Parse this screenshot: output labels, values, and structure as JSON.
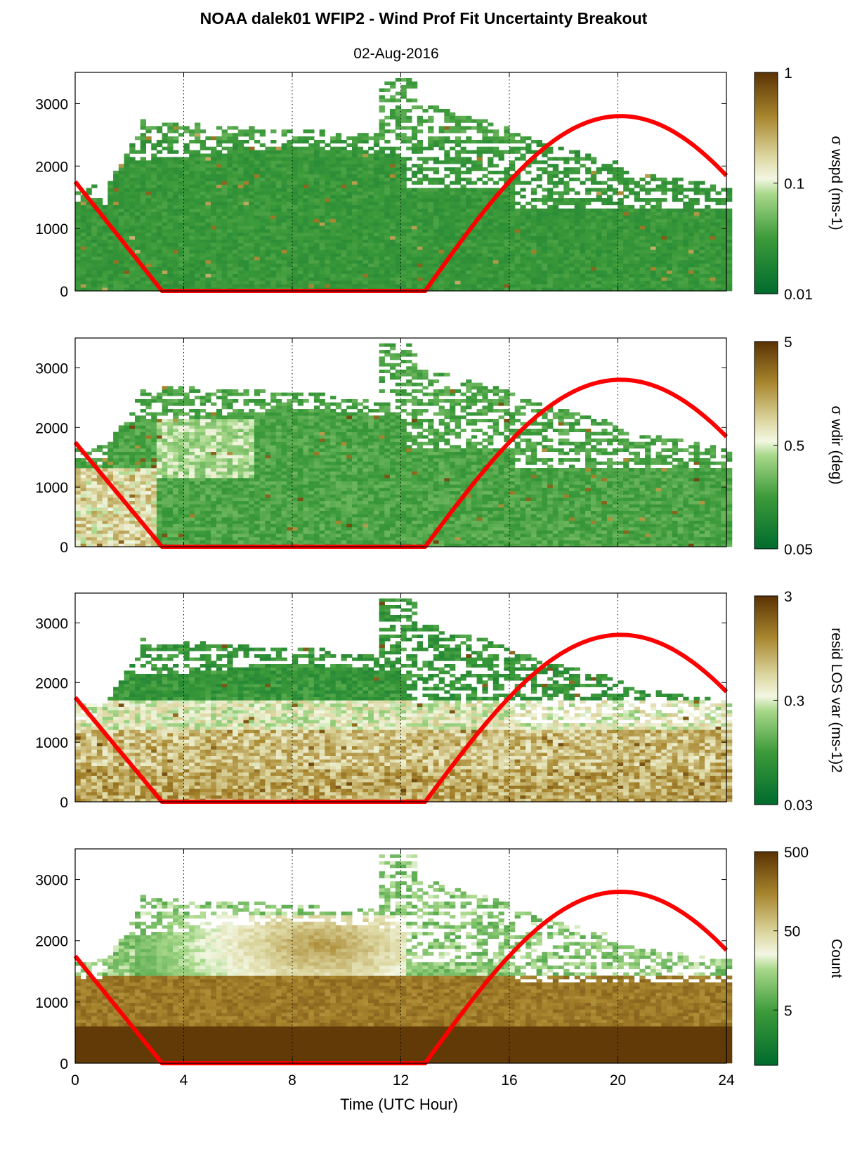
{
  "figure": {
    "title": "NOAA dalek01 WFIP2 - Wind Prof Fit Uncertainty Breakout",
    "subtitle": "02-Aug-2016",
    "xlabel": "Time (UTC Hour)"
  },
  "colors": {
    "sun_curve": "#ff0000",
    "cmap_low": "#006b2d",
    "cmap_mid": "#f5f5e6",
    "cmap_high": "#5a3204"
  },
  "chart_data": [
    {
      "type": "heatmap",
      "xlim": [
        0,
        24
      ],
      "ylim": [
        0,
        3500
      ],
      "x_ticks": [
        "0",
        "4",
        "8",
        "12",
        "16",
        "20",
        "24"
      ],
      "y_ticks": [
        "0",
        "1000",
        "2000",
        "3000"
      ],
      "grid": "dotted vertical lines at 4-hour intervals",
      "colorbar": {
        "label": "σ wspd (ms-1)",
        "scale": "log",
        "ticks": [
          "1",
          "0.1",
          "0.01"
        ],
        "range": [
          0.01,
          1
        ]
      },
      "sun_elevation_curve": {
        "x": [
          0,
          3.2,
          12.9,
          20.1,
          24
        ],
        "y": [
          1750,
          0,
          0,
          2800,
          1880
        ]
      }
    },
    {
      "type": "heatmap",
      "xlim": [
        0,
        24
      ],
      "ylim": [
        0,
        3500
      ],
      "x_ticks": [
        "0",
        "4",
        "8",
        "12",
        "16",
        "20",
        "24"
      ],
      "y_ticks": [
        "0",
        "1000",
        "2000",
        "3000"
      ],
      "colorbar": {
        "label": "σ wdir (deg)",
        "scale": "log",
        "ticks": [
          "5",
          "0.5",
          "0.05"
        ],
        "range": [
          0.05,
          5
        ]
      },
      "sun_elevation_curve": {
        "x": [
          0,
          3.2,
          12.9,
          20.1,
          24
        ],
        "y": [
          1750,
          0,
          0,
          2800,
          1880
        ]
      }
    },
    {
      "type": "heatmap",
      "xlim": [
        0,
        24
      ],
      "ylim": [
        0,
        3500
      ],
      "x_ticks": [
        "0",
        "4",
        "8",
        "12",
        "16",
        "20",
        "24"
      ],
      "y_ticks": [
        "0",
        "1000",
        "2000",
        "3000"
      ],
      "colorbar": {
        "label": "resid LOS var (ms-1)2",
        "scale": "log",
        "ticks": [
          "3",
          "0.3",
          "0.03"
        ],
        "range": [
          0.03,
          3
        ]
      },
      "sun_elevation_curve": {
        "x": [
          0,
          3.2,
          12.9,
          20.1,
          24
        ],
        "y": [
          1750,
          0,
          0,
          2800,
          1880
        ]
      }
    },
    {
      "type": "heatmap",
      "xlim": [
        0,
        24
      ],
      "ylim": [
        0,
        3500
      ],
      "x_ticks": [
        "0",
        "4",
        "8",
        "12",
        "16",
        "20",
        "24"
      ],
      "y_ticks": [
        "0",
        "1000",
        "2000",
        "3000"
      ],
      "colorbar": {
        "label": "Count",
        "scale": "log",
        "ticks": [
          "500",
          "50",
          "5"
        ],
        "range": [
          1,
          500
        ]
      },
      "sun_elevation_curve": {
        "x": [
          0,
          3.2,
          12.9,
          20.1,
          24
        ],
        "y": [
          1750,
          0,
          0,
          2800,
          1880
        ]
      }
    }
  ]
}
